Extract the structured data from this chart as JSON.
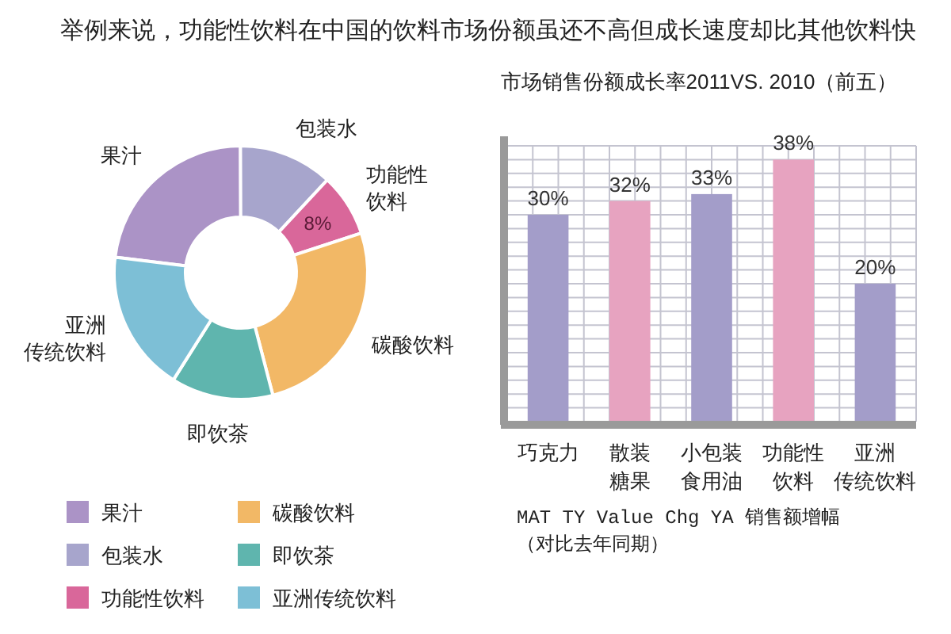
{
  "chart_data": [
    {
      "type": "donut",
      "title": "举例来说，功能性饮料在中国的饮料市场份额虽还不高但成长速度却比其他饮料快",
      "categories": [
        "果汁",
        "包装水",
        "功能性饮料",
        "碳酸饮料",
        "即饮茶",
        "亚洲传统饮料"
      ],
      "values": [
        23,
        12,
        8,
        26,
        13,
        18
      ],
      "value_labels": [
        null,
        null,
        "8%",
        null,
        null,
        null
      ],
      "colors": [
        "#ab93c6",
        "#a7a5cc",
        "#d9679a",
        "#f2b866",
        "#5fb5ae",
        "#7dbfd6"
      ],
      "legend": "bottom"
    },
    {
      "type": "bar",
      "title": "市场销售份额成长率2011VS. 2010（前五）",
      "categories": [
        "巧克力",
        "散装糖果",
        "小包装食用油",
        "功能性饮料",
        "亚洲传统饮料"
      ],
      "values": [
        30,
        32,
        33,
        38,
        20
      ],
      "value_labels": [
        "30%",
        "32%",
        "33%",
        "38%",
        "20%"
      ],
      "colors": [
        "#a39dc9",
        "#e7a3c0",
        "#a39dc9",
        "#e7a3c0",
        "#a39dc9"
      ],
      "ylim": [
        0,
        40
      ],
      "grid": true,
      "tick_labels": "x",
      "annotations": [
        "MAT TY Value Chg YA 销售额增幅（对比去年同期）"
      ]
    }
  ]
}
